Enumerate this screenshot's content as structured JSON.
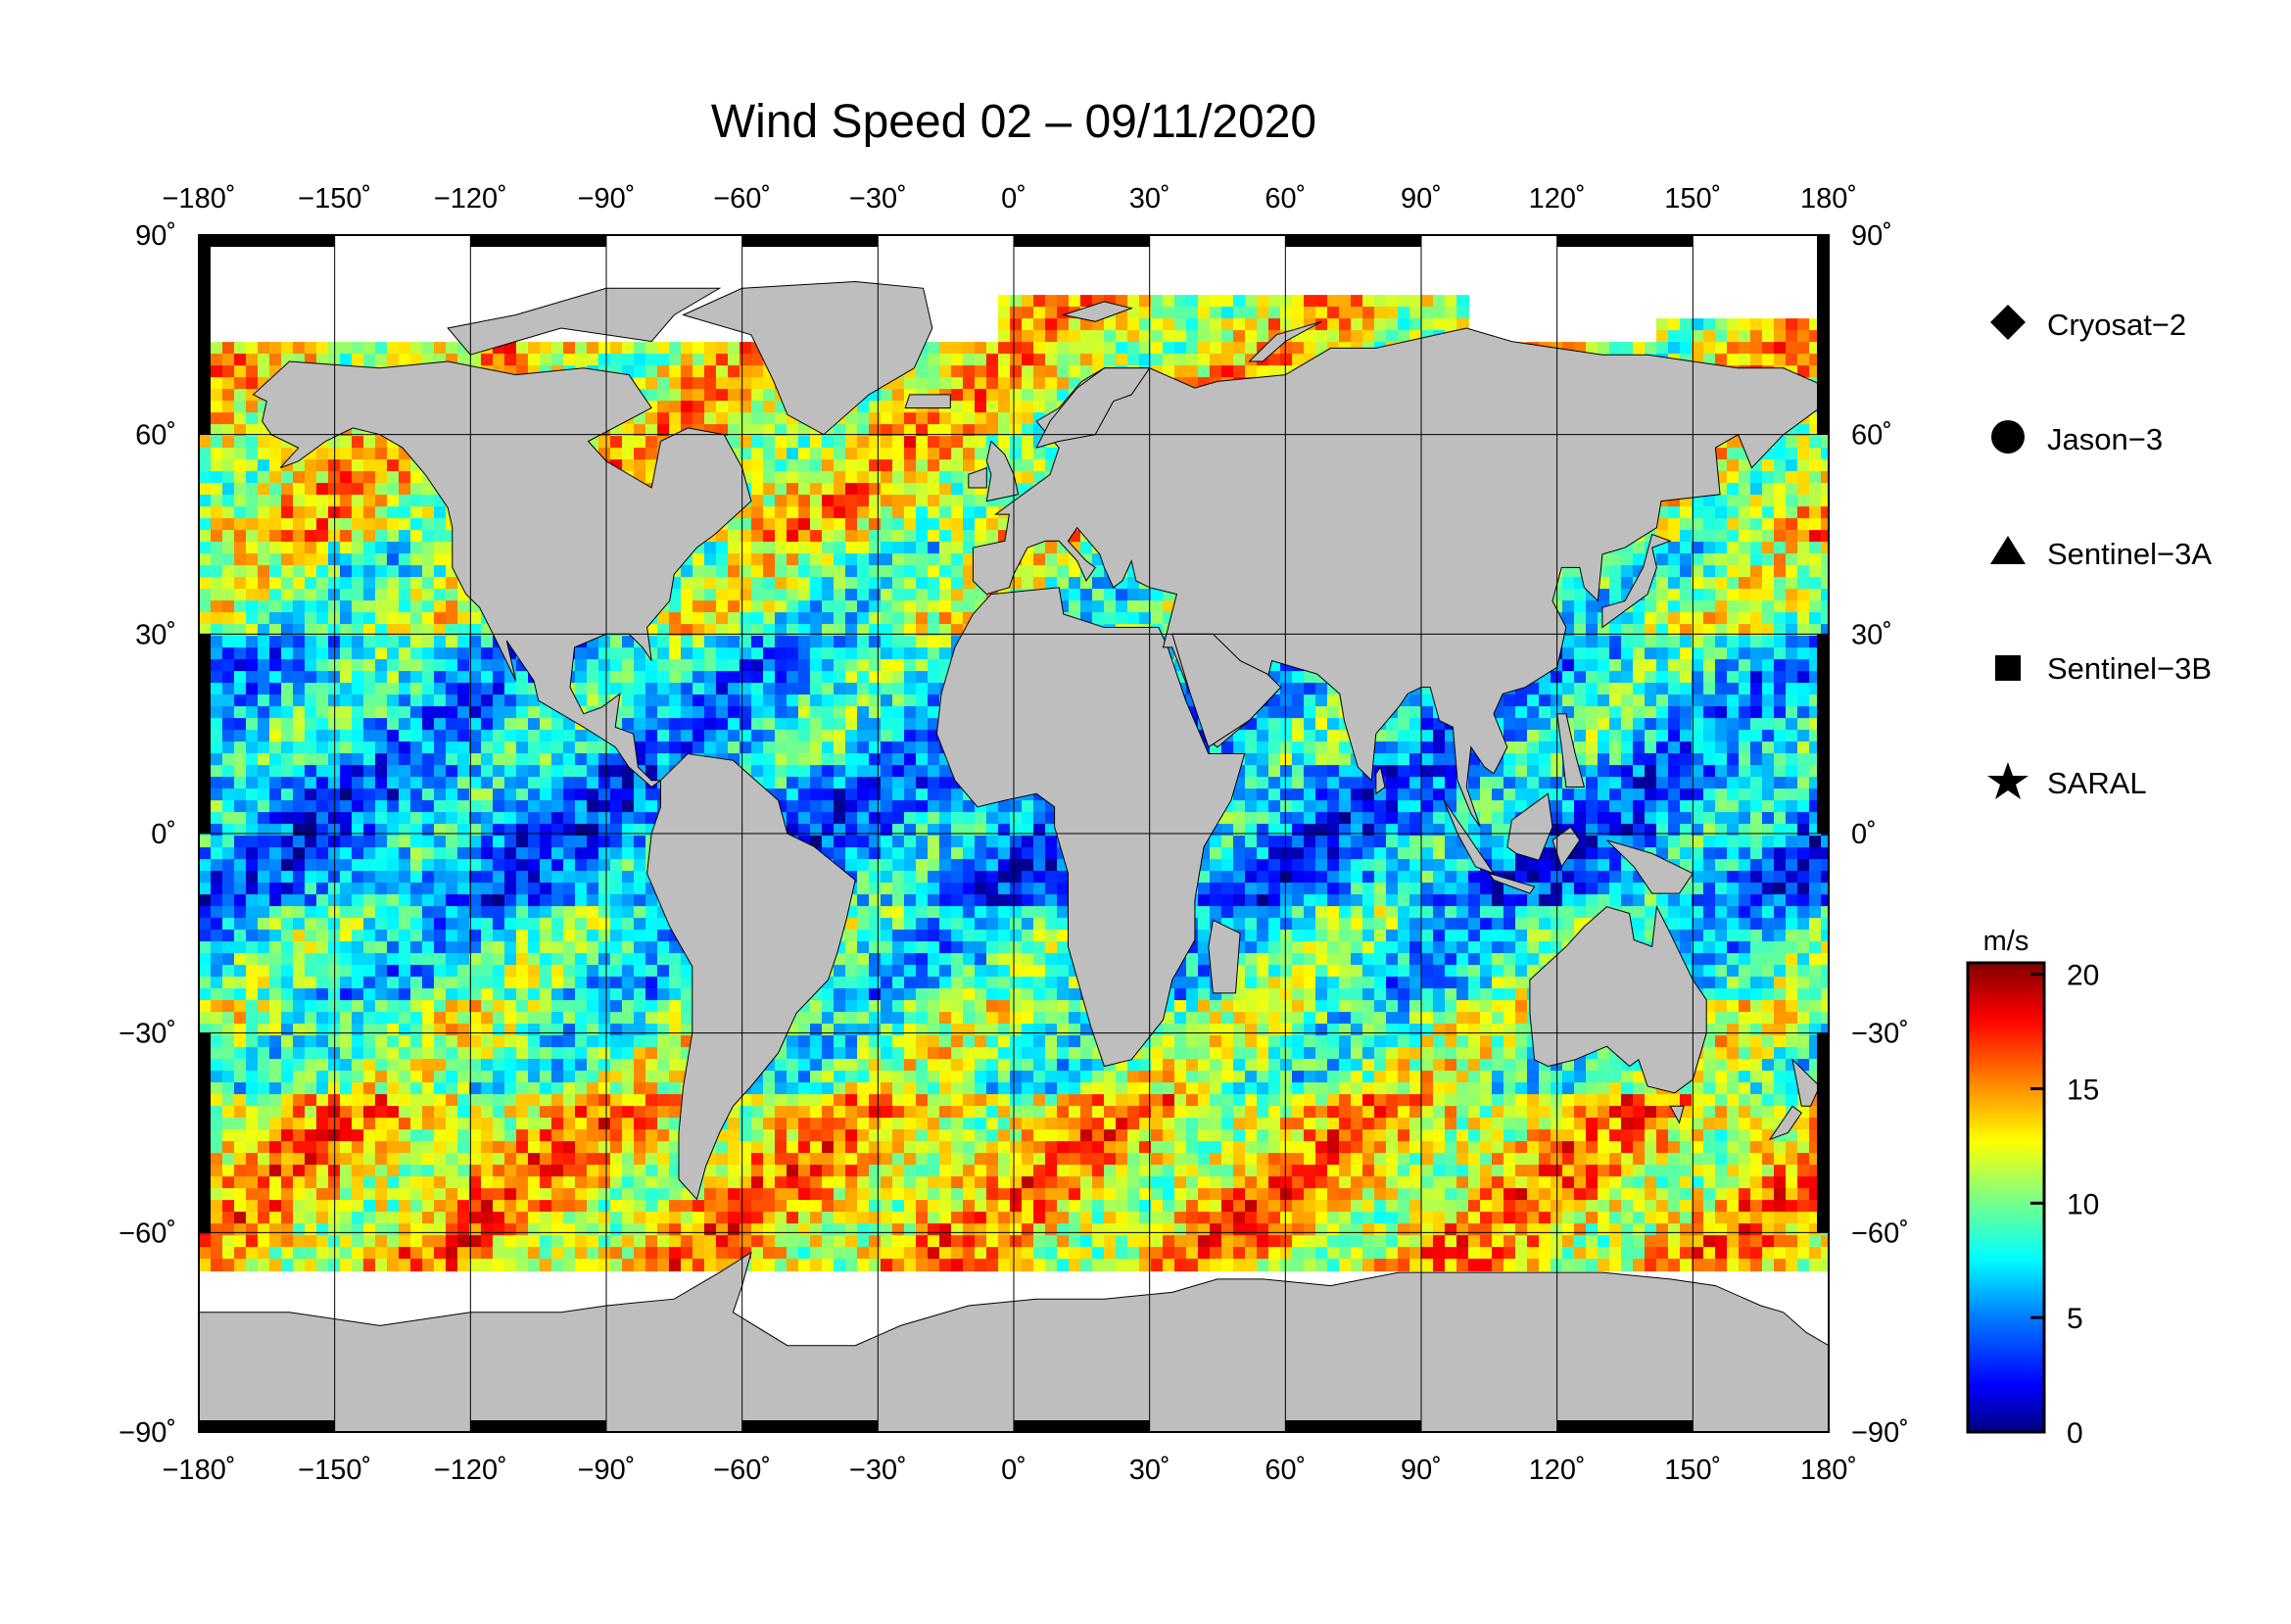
{
  "title": "Wind Speed 02 – 09/11/2020",
  "map": {
    "projection": "equirectangular",
    "lon_range": [
      -180,
      180
    ],
    "lat_range": [
      -90,
      90
    ],
    "land_color": "#bebebe",
    "ice_color": "#ffffff",
    "gridlines": true
  },
  "axes": {
    "lon_ticks": [
      {
        "value": -180,
        "label": "−180˚"
      },
      {
        "value": -150,
        "label": "−150˚"
      },
      {
        "value": -120,
        "label": "−120˚"
      },
      {
        "value": -90,
        "label": "−90˚"
      },
      {
        "value": -60,
        "label": "−60˚"
      },
      {
        "value": -30,
        "label": "−30˚"
      },
      {
        "value": 0,
        "label": "0˚"
      },
      {
        "value": 30,
        "label": "30˚"
      },
      {
        "value": 60,
        "label": "60˚"
      },
      {
        "value": 90,
        "label": "90˚"
      },
      {
        "value": 120,
        "label": "120˚"
      },
      {
        "value": 150,
        "label": "150˚"
      },
      {
        "value": 180,
        "label": "180˚"
      }
    ],
    "lat_ticks": [
      {
        "value": 90,
        "label": "90˚"
      },
      {
        "value": 60,
        "label": "60˚"
      },
      {
        "value": 30,
        "label": "30˚"
      },
      {
        "value": 0,
        "label": "0˚"
      },
      {
        "value": -30,
        "label": "−30˚"
      },
      {
        "value": -60,
        "label": "−60˚"
      },
      {
        "value": -90,
        "label": "−90˚"
      }
    ]
  },
  "legend": {
    "items": [
      {
        "label": "Cryosat−2",
        "marker": "diamond"
      },
      {
        "label": "Jason−3",
        "marker": "circle"
      },
      {
        "label": "Sentinel−3A",
        "marker": "triangle"
      },
      {
        "label": "Sentinel−3B",
        "marker": "square"
      },
      {
        "label": "SARAL",
        "marker": "star"
      }
    ]
  },
  "colorbar": {
    "unit": "m/s",
    "min": 0,
    "max": 20.5,
    "ticks": [
      {
        "value": 20,
        "label": "20"
      },
      {
        "value": 15,
        "label": "15"
      },
      {
        "value": 10,
        "label": "10"
      },
      {
        "value": 5,
        "label": "5"
      },
      {
        "value": 0,
        "label": "0"
      }
    ],
    "colormap": [
      "#000080",
      "#0000ff",
      "#0080ff",
      "#00ffff",
      "#80ff80",
      "#ffff00",
      "#ff8000",
      "#ff0000",
      "#800000"
    ]
  }
}
